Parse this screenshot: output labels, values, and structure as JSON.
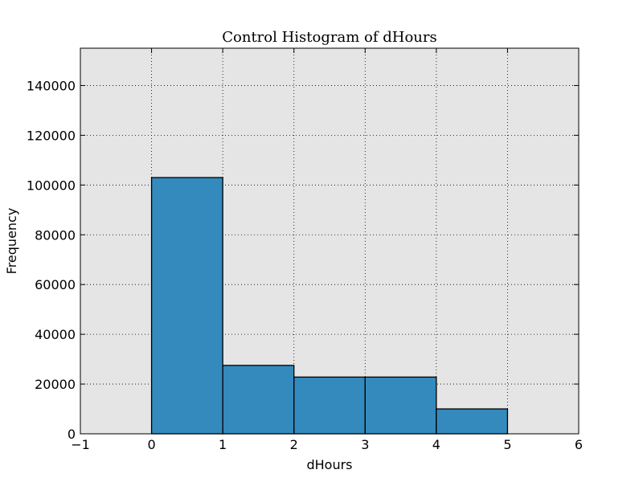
{
  "chart_data": {
    "type": "bar",
    "title": "Control Histogram of dHours",
    "xlabel": "dHours",
    "ylabel": "Frequency",
    "bins": [
      {
        "x0": 0,
        "x1": 1,
        "value": 103000
      },
      {
        "x0": 1,
        "x1": 2,
        "value": 27500
      },
      {
        "x0": 2,
        "x1": 3,
        "value": 22800
      },
      {
        "x0": 3,
        "x1": 4,
        "value": 22800
      },
      {
        "x0": 4,
        "x1": 5,
        "value": 10000
      }
    ],
    "xlim": [
      -1,
      6
    ],
    "ylim": [
      0,
      155000
    ],
    "xticks": [
      -1,
      0,
      1,
      2,
      3,
      4,
      5,
      6
    ],
    "xtick_labels": [
      "−1",
      "0",
      "1",
      "2",
      "3",
      "4",
      "5",
      "6"
    ],
    "yticks": [
      0,
      20000,
      40000,
      60000,
      80000,
      100000,
      120000,
      140000
    ],
    "ytick_labels": [
      "0",
      "20000",
      "40000",
      "60000",
      "80000",
      "100000",
      "120000",
      "140000"
    ],
    "grid": true,
    "bar_color": "#348abd",
    "background_color": "#e5e5e5"
  }
}
